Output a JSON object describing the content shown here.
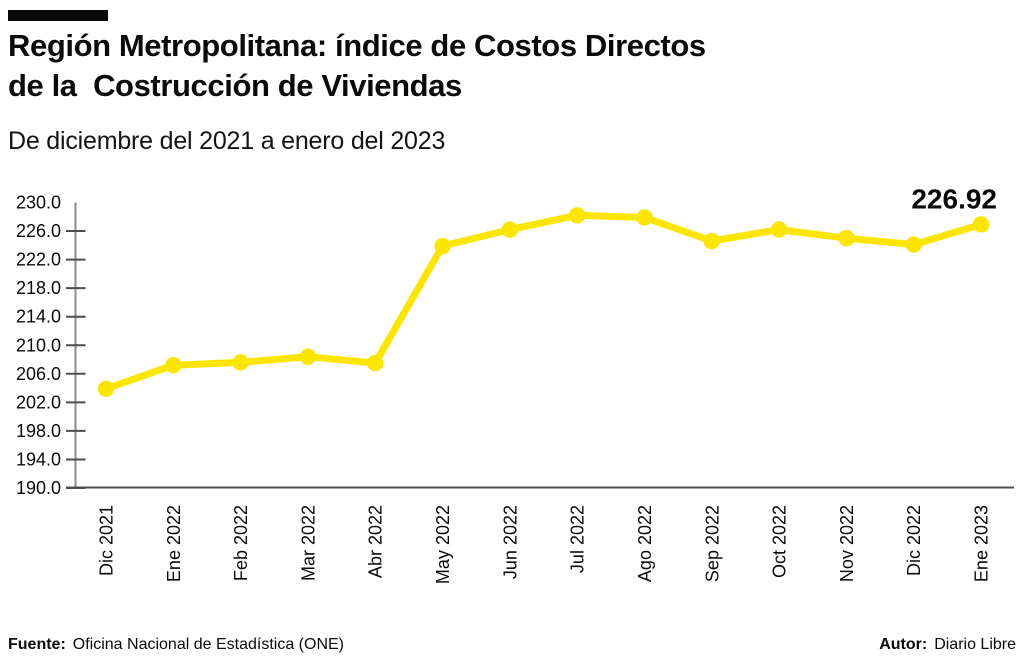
{
  "header": {
    "title_line1": "Región Metropolitana: índice de Costos Directos",
    "title_line2": "de la  Costrucción de Viviendas",
    "subtitle": "De diciembre del 2021 a enero del 2023"
  },
  "footer": {
    "source_label": "Fuente:",
    "source_text": "Oficina Nacional de Estadística (ONE)",
    "author_label": "Autor:",
    "author_text": "Diario Libre"
  },
  "colors": {
    "series_yellow": "#FCE500",
    "axis_dark": "#4d4d4d",
    "axis_gray": "#8c8c8c",
    "text_black": "#0a0a0a"
  },
  "chart_data": {
    "type": "line",
    "title": "Región Metropolitana: índice de Costos Directos de la Costrucción de Viviendas",
    "subtitle": "De diciembre del 2021 a enero del 2023",
    "categories": [
      "Dic 2021",
      "Ene 2022",
      "Feb 2022",
      "Mar 2022",
      "Abr 2022",
      "May 2022",
      "Jun 2022",
      "Jul 2022",
      "Ago 2022",
      "Sep 2022",
      "Oct 2022",
      "Nov 2022",
      "Dic 2022",
      "Ene 2023"
    ],
    "series": [
      {
        "name": "Índice de Costos Directos de la Construcción de Viviendas",
        "values": [
          203.9,
          207.2,
          207.6,
          208.4,
          207.5,
          223.9,
          226.2,
          228.2,
          227.9,
          224.6,
          226.2,
          225.0,
          224.1,
          226.92
        ]
      }
    ],
    "ylim": [
      190.0,
      230.0
    ],
    "ytick_step": 4.0,
    "yticklabels": [
      "190.0",
      "194.0",
      "198.0",
      "202.0",
      "206.0",
      "210.0",
      "214.0",
      "218.0",
      "222.0",
      "226.0",
      "230.0"
    ],
    "xlabel": "",
    "ylabel": "",
    "grid": false,
    "legend": "none",
    "annotation": {
      "text": "226.92",
      "category": "Ene 2023",
      "series_index": 0,
      "point_index": 13
    }
  }
}
